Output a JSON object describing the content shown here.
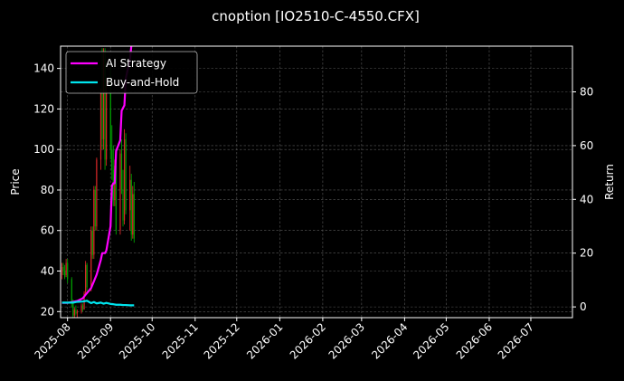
{
  "chart_data": {
    "type": "line",
    "title": "cnoption [IO2510-C-4550.CFX]",
    "ylabel": "Price",
    "y2label": "Return",
    "xlim": [
      "2025-07-27",
      "2026-07-31"
    ],
    "ylim": [
      17,
      151
    ],
    "y2lim": [
      -4,
      97
    ],
    "x_ticks": [
      "2025-08",
      "2025-09",
      "2025-10",
      "2025-11",
      "2025-12",
      "2026-01",
      "2026-02",
      "2026-03",
      "2026-04",
      "2026-05",
      "2026-06",
      "2026-07"
    ],
    "y_ticks": [
      20,
      40,
      60,
      80,
      100,
      120,
      140
    ],
    "y2_ticks": [
      0,
      20,
      40,
      60,
      80
    ],
    "grid": true,
    "legend_position": "top-left",
    "colors": {
      "up": "#d62728",
      "down": "#00a000",
      "strategy": "#ff00ff",
      "buyhold": "#00e5ee",
      "background": "#000000"
    },
    "candles": [
      {
        "date": "2025-07-28",
        "open": 38,
        "high": 44,
        "low": 36,
        "close": 42
      },
      {
        "date": "2025-07-29",
        "open": 42,
        "high": 44,
        "low": 38,
        "close": 40
      },
      {
        "date": "2025-07-30",
        "open": 40,
        "high": 43,
        "low": 36,
        "close": 37
      },
      {
        "date": "2025-07-31",
        "open": 38,
        "high": 46,
        "low": 37,
        "close": 44
      },
      {
        "date": "2025-08-01",
        "open": 44,
        "high": 46,
        "low": 34,
        "close": 36
      },
      {
        "date": "2025-08-04",
        "open": 36,
        "high": 37,
        "low": 22,
        "close": 24
      },
      {
        "date": "2025-08-05",
        "open": 24,
        "high": 26,
        "low": 17,
        "close": 18
      },
      {
        "date": "2025-08-06",
        "open": 18,
        "high": 22,
        "low": 17,
        "close": 21
      },
      {
        "date": "2025-08-07",
        "open": 21,
        "high": 23,
        "low": 18,
        "close": 19
      },
      {
        "date": "2025-08-08",
        "open": 19,
        "high": 21,
        "low": 17,
        "close": 20
      },
      {
        "date": "2025-08-11",
        "open": 20,
        "high": 24,
        "low": 19,
        "close": 23
      },
      {
        "date": "2025-08-12",
        "open": 23,
        "high": 24,
        "low": 20,
        "close": 21
      },
      {
        "date": "2025-08-13",
        "open": 21,
        "high": 30,
        "low": 21,
        "close": 29
      },
      {
        "date": "2025-08-14",
        "open": 29,
        "high": 45,
        "low": 28,
        "close": 43
      },
      {
        "date": "2025-08-15",
        "open": 43,
        "high": 44,
        "low": 30,
        "close": 32
      },
      {
        "date": "2025-08-18",
        "open": 32,
        "high": 62,
        "low": 30,
        "close": 60
      },
      {
        "date": "2025-08-19",
        "open": 60,
        "high": 62,
        "low": 46,
        "close": 48
      },
      {
        "date": "2025-08-20",
        "open": 48,
        "high": 82,
        "low": 46,
        "close": 80
      },
      {
        "date": "2025-08-21",
        "open": 80,
        "high": 82,
        "low": 60,
        "close": 62
      },
      {
        "date": "2025-08-22",
        "open": 62,
        "high": 96,
        "low": 60,
        "close": 95
      },
      {
        "date": "2025-08-25",
        "open": 95,
        "high": 130,
        "low": 90,
        "close": 128
      },
      {
        "date": "2025-08-26",
        "open": 128,
        "high": 150,
        "low": 100,
        "close": 105
      },
      {
        "date": "2025-08-27",
        "open": 105,
        "high": 150,
        "low": 100,
        "close": 145
      },
      {
        "date": "2025-08-28",
        "open": 145,
        "high": 150,
        "low": 90,
        "close": 95
      },
      {
        "date": "2025-08-29",
        "open": 95,
        "high": 135,
        "low": 92,
        "close": 128
      },
      {
        "date": "2025-09-01",
        "open": 128,
        "high": 140,
        "low": 95,
        "close": 100
      },
      {
        "date": "2025-09-02",
        "open": 100,
        "high": 112,
        "low": 85,
        "close": 90
      },
      {
        "date": "2025-09-03",
        "open": 90,
        "high": 102,
        "low": 72,
        "close": 75
      },
      {
        "date": "2025-09-04",
        "open": 75,
        "high": 95,
        "low": 72,
        "close": 92
      },
      {
        "date": "2025-09-05",
        "open": 92,
        "high": 96,
        "low": 58,
        "close": 60
      },
      {
        "date": "2025-09-08",
        "open": 60,
        "high": 100,
        "low": 58,
        "close": 98
      },
      {
        "date": "2025-09-09",
        "open": 98,
        "high": 105,
        "low": 78,
        "close": 80
      },
      {
        "date": "2025-09-10",
        "open": 80,
        "high": 90,
        "low": 62,
        "close": 65
      },
      {
        "date": "2025-09-11",
        "open": 65,
        "high": 110,
        "low": 63,
        "close": 105
      },
      {
        "date": "2025-09-12",
        "open": 105,
        "high": 108,
        "low": 68,
        "close": 70
      },
      {
        "date": "2025-09-15",
        "open": 70,
        "high": 92,
        "low": 60,
        "close": 85
      },
      {
        "date": "2025-09-16",
        "open": 85,
        "high": 88,
        "low": 55,
        "close": 58
      },
      {
        "date": "2025-09-17",
        "open": 58,
        "high": 82,
        "low": 56,
        "close": 78
      },
      {
        "date": "2025-09-18",
        "open": 78,
        "high": 84,
        "low": 54,
        "close": 56
      }
    ],
    "series": [
      {
        "name": "AI Strategy",
        "points": [
          [
            "2025-07-28",
            1.5
          ],
          [
            "2025-08-01",
            1.5
          ],
          [
            "2025-08-04",
            1.8
          ],
          [
            "2025-08-08",
            2.2
          ],
          [
            "2025-08-12",
            3.2
          ],
          [
            "2025-08-14",
            4.5
          ],
          [
            "2025-08-18",
            7.0
          ],
          [
            "2025-08-20",
            9.5
          ],
          [
            "2025-08-22",
            12.0
          ],
          [
            "2025-08-25",
            17.5
          ],
          [
            "2025-08-26",
            20.0
          ],
          [
            "2025-08-28",
            20.0
          ],
          [
            "2025-08-29",
            21.0
          ],
          [
            "2025-09-01",
            30.0
          ],
          [
            "2025-09-02",
            45.0
          ],
          [
            "2025-09-03",
            46.0
          ],
          [
            "2025-09-04",
            46.0
          ],
          [
            "2025-09-05",
            58.0
          ],
          [
            "2025-09-08",
            62.0
          ],
          [
            "2025-09-09",
            73.0
          ],
          [
            "2025-09-10",
            74.0
          ],
          [
            "2025-09-11",
            75.0
          ],
          [
            "2025-09-12",
            85.0
          ],
          [
            "2025-09-15",
            92.0
          ],
          [
            "2025-09-16",
            97.0
          ]
        ]
      },
      {
        "name": "Buy-and-Hold",
        "points": [
          [
            "2025-07-28",
            1.6
          ],
          [
            "2025-08-01",
            1.6
          ],
          [
            "2025-08-05",
            1.6
          ],
          [
            "2025-08-08",
            1.9
          ],
          [
            "2025-08-12",
            2.0
          ],
          [
            "2025-08-15",
            2.3
          ],
          [
            "2025-08-18",
            1.4
          ],
          [
            "2025-08-20",
            1.8
          ],
          [
            "2025-08-22",
            1.3
          ],
          [
            "2025-08-25",
            1.6
          ],
          [
            "2025-08-27",
            1.2
          ],
          [
            "2025-08-29",
            1.5
          ],
          [
            "2025-09-01",
            1.1
          ],
          [
            "2025-09-03",
            1.0
          ],
          [
            "2025-09-05",
            0.8
          ],
          [
            "2025-09-08",
            0.8
          ],
          [
            "2025-09-10",
            0.7
          ],
          [
            "2025-09-12",
            0.7
          ],
          [
            "2025-09-15",
            0.6
          ],
          [
            "2025-09-18",
            0.6
          ]
        ]
      }
    ]
  }
}
